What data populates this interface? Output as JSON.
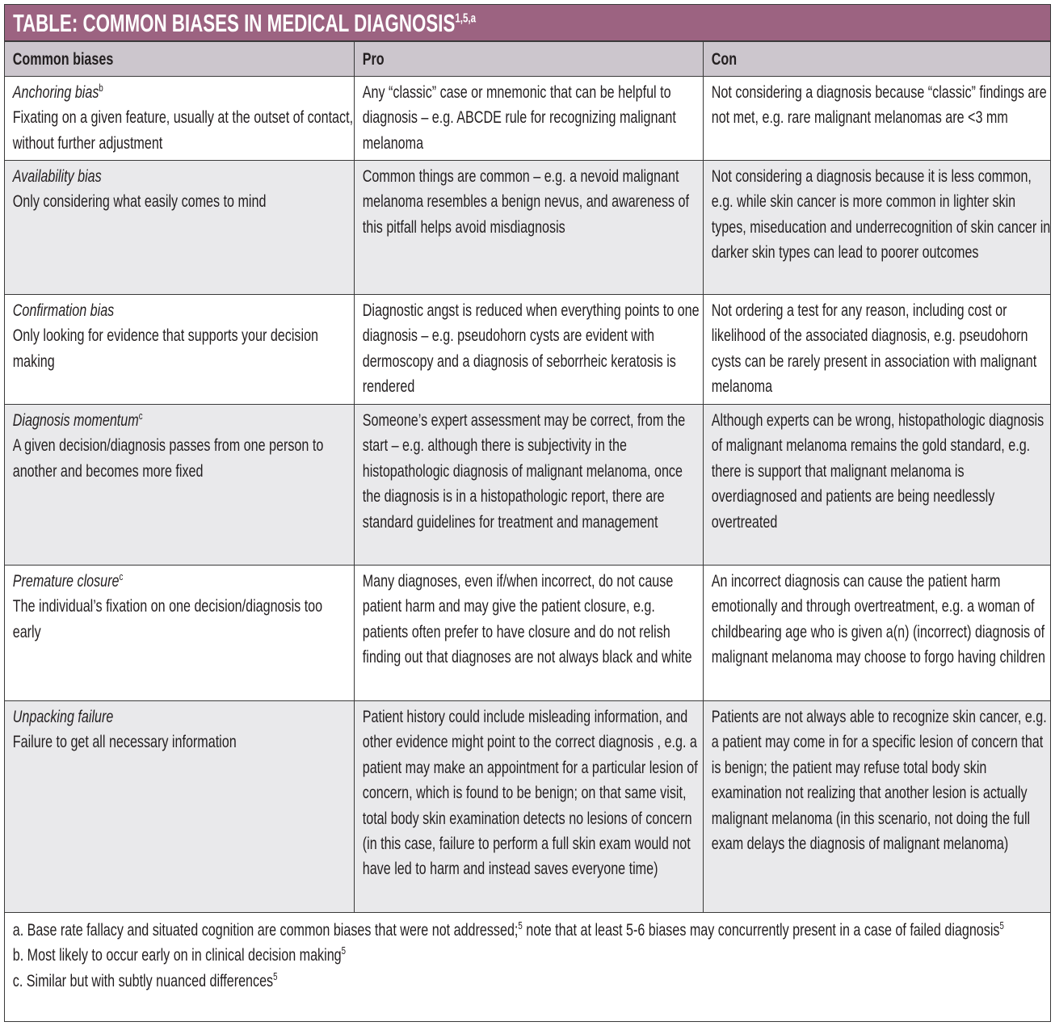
{
  "title": {
    "text": "TABLE: COMMON BIASES IN MEDICAL DIAGNOSIS",
    "sup": "1,5,a"
  },
  "colors": {
    "title_bg": "#9c6381",
    "header_bg": "#ccc6cd",
    "alt_row_bg": "#e9e9eb"
  },
  "headers": [
    "Common biases",
    "Pro",
    "Con"
  ],
  "rows": [
    {
      "name": "Anchoring bias",
      "sup": "b",
      "desc": "Fixating on a given feature, usually at the outset of contact, without further adjustment",
      "pro": "Any “classic” case or mnemonic that can be helpful to diagnosis – e.g. ABCDE rule for recognizing malignant melanoma",
      "con": "Not considering a diagnosis because “classic” findings are not met, e.g. rare malignant melanomas are <3 mm"
    },
    {
      "name": "Availability bias",
      "sup": "",
      "desc": "Only considering what easily comes to mind",
      "pro": "Common things are common – e.g. a nevoid malignant melanoma resembles a benign nevus, and awareness of this pitfall helps avoid misdiagnosis",
      "con": "Not considering a diagnosis because it is less common, e.g. while skin cancer is more common in lighter skin types, miseducation and underrecognition of skin cancer in darker skin types can lead to poorer outcomes"
    },
    {
      "name": "Confirmation bias",
      "sup": "",
      "desc": "Only looking for evidence that supports your decision making",
      "pro": "Diagnostic angst is reduced when everything points to one diagnosis – e.g. pseudohorn cysts are evident with dermoscopy and a diagnosis of seborrheic keratosis is rendered",
      "con": "Not ordering a test for any reason, including cost or likelihood of the associated diagnosis, e.g. pseudohorn cysts can be rarely present in association with malignant melanoma"
    },
    {
      "name": "Diagnosis momentum",
      "sup": "c",
      "desc": "A given decision/diagnosis passes from one person to another and becomes more fixed",
      "pro": "Someone’s expert assessment may be correct, from the start – e.g. although there is subjectivity in the histopathologic diagnosis of malignant melanoma, once the diagnosis is in a histopathologic report, there are standard guidelines for treatment and management",
      "con": "Although experts can be wrong, histopathologic diagnosis of malignant melanoma remains the gold standard, e.g. there is support that malignant melanoma is overdiagnosed and patients are being needlessly overtreated"
    },
    {
      "name": "Premature closure",
      "sup": "c",
      "desc": "The individual’s fixation on one decision/diagnosis too early",
      "pro": "Many diagnoses, even if/when incorrect, do not cause patient harm and may give the patient closure, e.g. patients often prefer to have closure and do not relish finding out that diagnoses are not always black and white",
      "con": "An incorrect diagnosis can cause the patient harm emotionally and through overtreatment, e.g. a woman of childbearing age who is given a(n) (incorrect) diagnosis of malignant melanoma may choose to forgo having children"
    },
    {
      "name": "Unpacking failure",
      "sup": "",
      "desc": "Failure to get all necessary information",
      "pro": "Patient history could include misleading information, and other evidence might point to the correct diagnosis , e.g. a patient may make an appointment for a particular lesion of concern, which is found to be benign; on that same visit, total body skin examination detects no lesions of concern (in this case, failure to perform a full skin exam would not have led to harm and instead saves everyone time)",
      "con": "Patients are not always able to recognize skin cancer, e.g. a patient may come in for a specific lesion of concern that is benign; the patient may refuse total body skin examination not realizing that another lesion is actually malignant melanoma (in this scenario, not doing the full exam delays the diagnosis of malignant melanoma)"
    }
  ],
  "footnotes": [
    {
      "text": "a. Base rate fallacy and situated cognition are common biases that were not addressed;",
      "sup": "5",
      "text2": " note that at least 5-6 biases may concurrently present in a case of failed diagnosis",
      "sup2": "5"
    },
    {
      "text": "b. Most likely to occur early on in clinical decision making",
      "sup": "5"
    },
    {
      "text": "c. Similar but with subtly nuanced differences",
      "sup": "5"
    }
  ]
}
